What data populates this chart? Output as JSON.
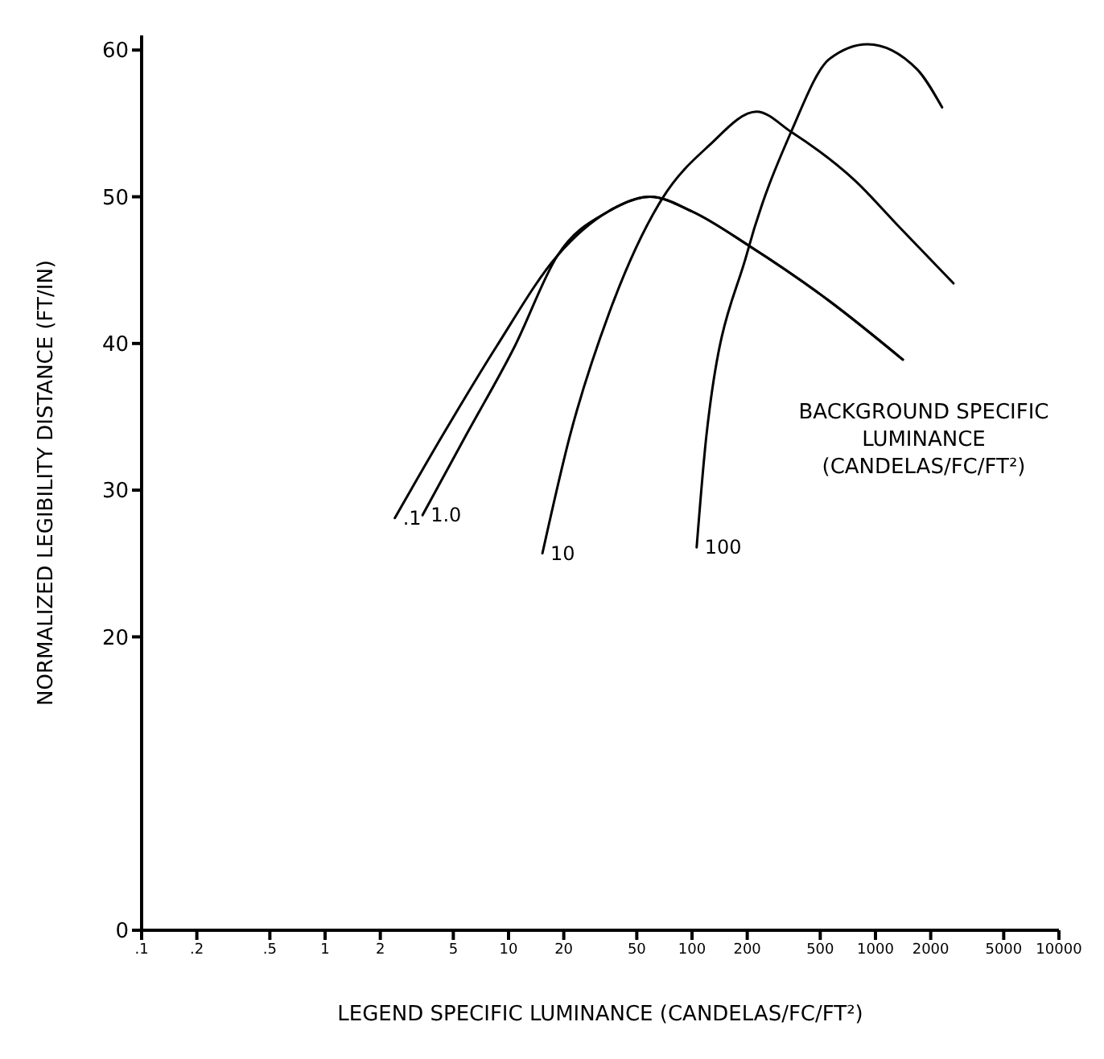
{
  "chart_data": {
    "type": "line",
    "xlabel": "LEGEND SPECIFIC LUMINANCE (CANDELAS/FC/FT²)",
    "ylabel": "NORMALIZED LEGIBILITY DISTANCE (FT/IN)",
    "legend_title": "BACKGROUND SPECIFIC LUMINANCE (CANDELAS/FC/FT²)",
    "log": "x",
    "xlim": [
      0.1,
      10000
    ],
    "xticks": [
      {
        "value": 0.1,
        "label": ".1"
      },
      {
        "value": 0.2,
        "label": ".2"
      },
      {
        "value": 0.5,
        "label": ".5"
      },
      1,
      2,
      5,
      10,
      20,
      50,
      100,
      200,
      500,
      1000,
      2000,
      5000,
      10000
    ],
    "ylim": [
      0,
      61
    ],
    "yticks": [
      0,
      20,
      30,
      40,
      50,
      60
    ],
    "grid": false,
    "legend": false,
    "marker": "none",
    "line_style": "solid",
    "series": [
      {
        "name": ".1",
        "color": "#000000",
        "x": [
          2.4,
          4.4,
          8.6,
          18.5,
          35,
          59,
          100,
          208,
          560,
          1410
        ],
        "values": [
          28.1,
          33.8,
          39.8,
          46,
          49,
          50,
          49,
          46.6,
          42.9,
          38.9
        ]
      },
      {
        "name": "1.0",
        "color": "#000000",
        "x": [
          3.4,
          5.9,
          10.8,
          18.5,
          35,
          59,
          100,
          208,
          560,
          1410
        ],
        "values": [
          28.3,
          33.8,
          39.8,
          46,
          49,
          50,
          49,
          46.6,
          42.9,
          38.9
        ]
      },
      {
        "name": "10",
        "color": "#000000",
        "x": [
          15.3,
          21.7,
          35.4,
          69,
          124,
          225,
          349,
          773,
          1334,
          2660
        ],
        "values": [
          25.7,
          33.8,
          42.1,
          49.9,
          53.5,
          55.8,
          54.4,
          51.1,
          48,
          44.1
        ]
      },
      {
        "name": "100",
        "color": "#000000",
        "x": [
          106,
          120,
          200,
          349,
          562,
          906,
          1682,
          2306
        ],
        "values": [
          26.1,
          33.8,
          46.2,
          54.5,
          59.4,
          60.4,
          58.7,
          56.1
        ]
      }
    ]
  }
}
